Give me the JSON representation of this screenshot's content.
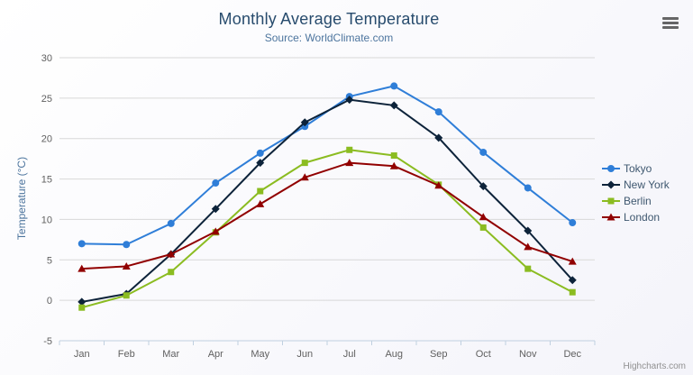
{
  "header": {
    "title": "Monthly Average Temperature",
    "subtitle": "Source: WorldClimate.com"
  },
  "credits": "Highcharts.com",
  "icons": {
    "context_menu": "hamburger-menu-icon"
  },
  "colors": {
    "title": "#274b6d",
    "subtitle": "#4d759e",
    "axis_label": "#606060",
    "grid_line": "#d8d8d8",
    "axis_line": "#c0d0e0",
    "legend_text": "#3e576f"
  },
  "chart_data": {
    "type": "line",
    "title": "Monthly Average Temperature",
    "subtitle": "Source: WorldClimate.com",
    "categories": [
      "Jan",
      "Feb",
      "Mar",
      "Apr",
      "May",
      "Jun",
      "Jul",
      "Aug",
      "Sep",
      "Oct",
      "Nov",
      "Dec"
    ],
    "series": [
      {
        "name": "Tokyo",
        "color": "#2f7ed8",
        "marker": "circle",
        "values": [
          7.0,
          6.9,
          9.5,
          14.5,
          18.2,
          21.5,
          25.2,
          26.5,
          23.3,
          18.3,
          13.9,
          9.6
        ]
      },
      {
        "name": "New York",
        "color": "#0d233a",
        "marker": "diamond",
        "values": [
          -0.2,
          0.8,
          5.7,
          11.3,
          17.0,
          22.0,
          24.8,
          24.1,
          20.1,
          14.1,
          8.6,
          2.5
        ]
      },
      {
        "name": "Berlin",
        "color": "#8bbc21",
        "marker": "square",
        "values": [
          -0.9,
          0.6,
          3.5,
          8.4,
          13.5,
          17.0,
          18.6,
          17.9,
          14.3,
          9.0,
          3.9,
          1.0
        ]
      },
      {
        "name": "London",
        "color": "#910000",
        "marker": "triangle",
        "values": [
          3.9,
          4.2,
          5.7,
          8.5,
          11.9,
          15.2,
          17.0,
          16.6,
          14.2,
          10.3,
          6.6,
          4.8
        ]
      }
    ],
    "xlabel": "",
    "ylabel": "Temperature (°C)",
    "ylim": [
      -5,
      30
    ],
    "yticks": [
      -5,
      0,
      5,
      10,
      15,
      20,
      25,
      30
    ],
    "grid": true,
    "legend_position": "right"
  }
}
